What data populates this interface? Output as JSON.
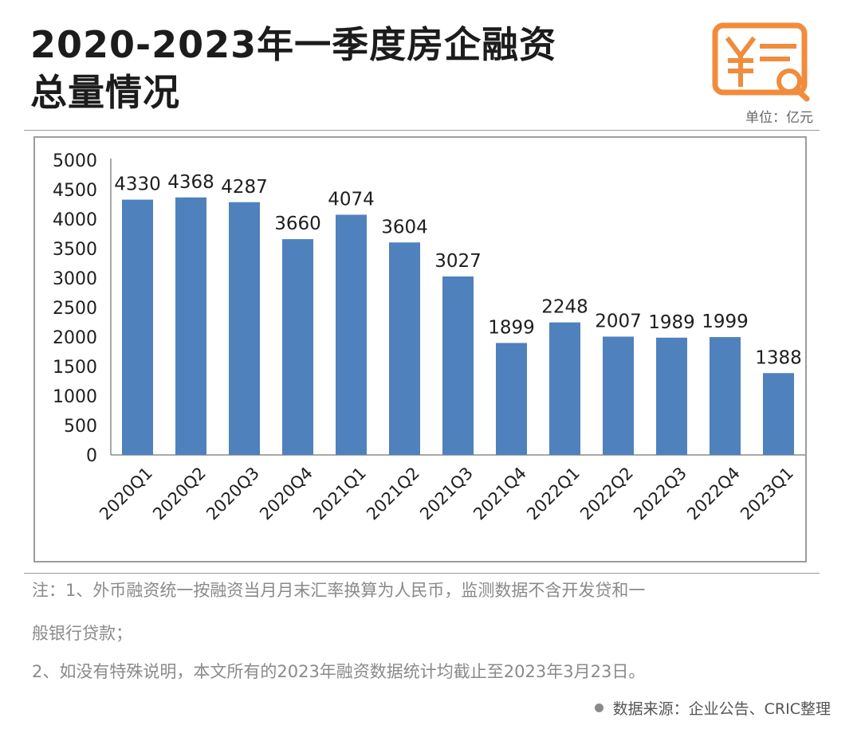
{
  "header": {
    "title_line1": "2020-2023年一季度房企融资",
    "title_line2": "总量情况",
    "unit": "单位：亿元",
    "logo_icon": "yuan-document-search-icon",
    "logo_color": "#f08c3c"
  },
  "chart_data": {
    "type": "bar",
    "title": "2020-2023年一季度房企融资总量情况",
    "categories": [
      "2020Q1",
      "2020Q2",
      "2020Q3",
      "2020Q4",
      "2021Q1",
      "2021Q2",
      "2021Q3",
      "2021Q4",
      "2022Q1",
      "2022Q2",
      "2022Q3",
      "2022Q4",
      "2023Q1"
    ],
    "values": [
      4330,
      4368,
      4287,
      3660,
      4074,
      3604,
      3027,
      1899,
      2248,
      2007,
      1989,
      1999,
      1388
    ],
    "yticks": [
      0,
      500,
      1000,
      1500,
      2000,
      2500,
      3000,
      3500,
      4000,
      4500,
      5000
    ],
    "ylim": [
      0,
      5000
    ],
    "xlabel": "",
    "ylabel": "",
    "unit": "亿元",
    "bar_color": "#4f81bd",
    "grid": false,
    "legend": "none"
  },
  "notes": {
    "line1": "注：1、外币融资统一按融资当月月末汇率换算为人民币，监测数据不含开发贷和一",
    "line2": "般银行贷款；",
    "line3": "2、如没有特殊说明，本文所有的2023年融资数据统计均截止至2023年3月23日。"
  },
  "source": {
    "text": "数据来源：企业公告、CRIC整理"
  }
}
